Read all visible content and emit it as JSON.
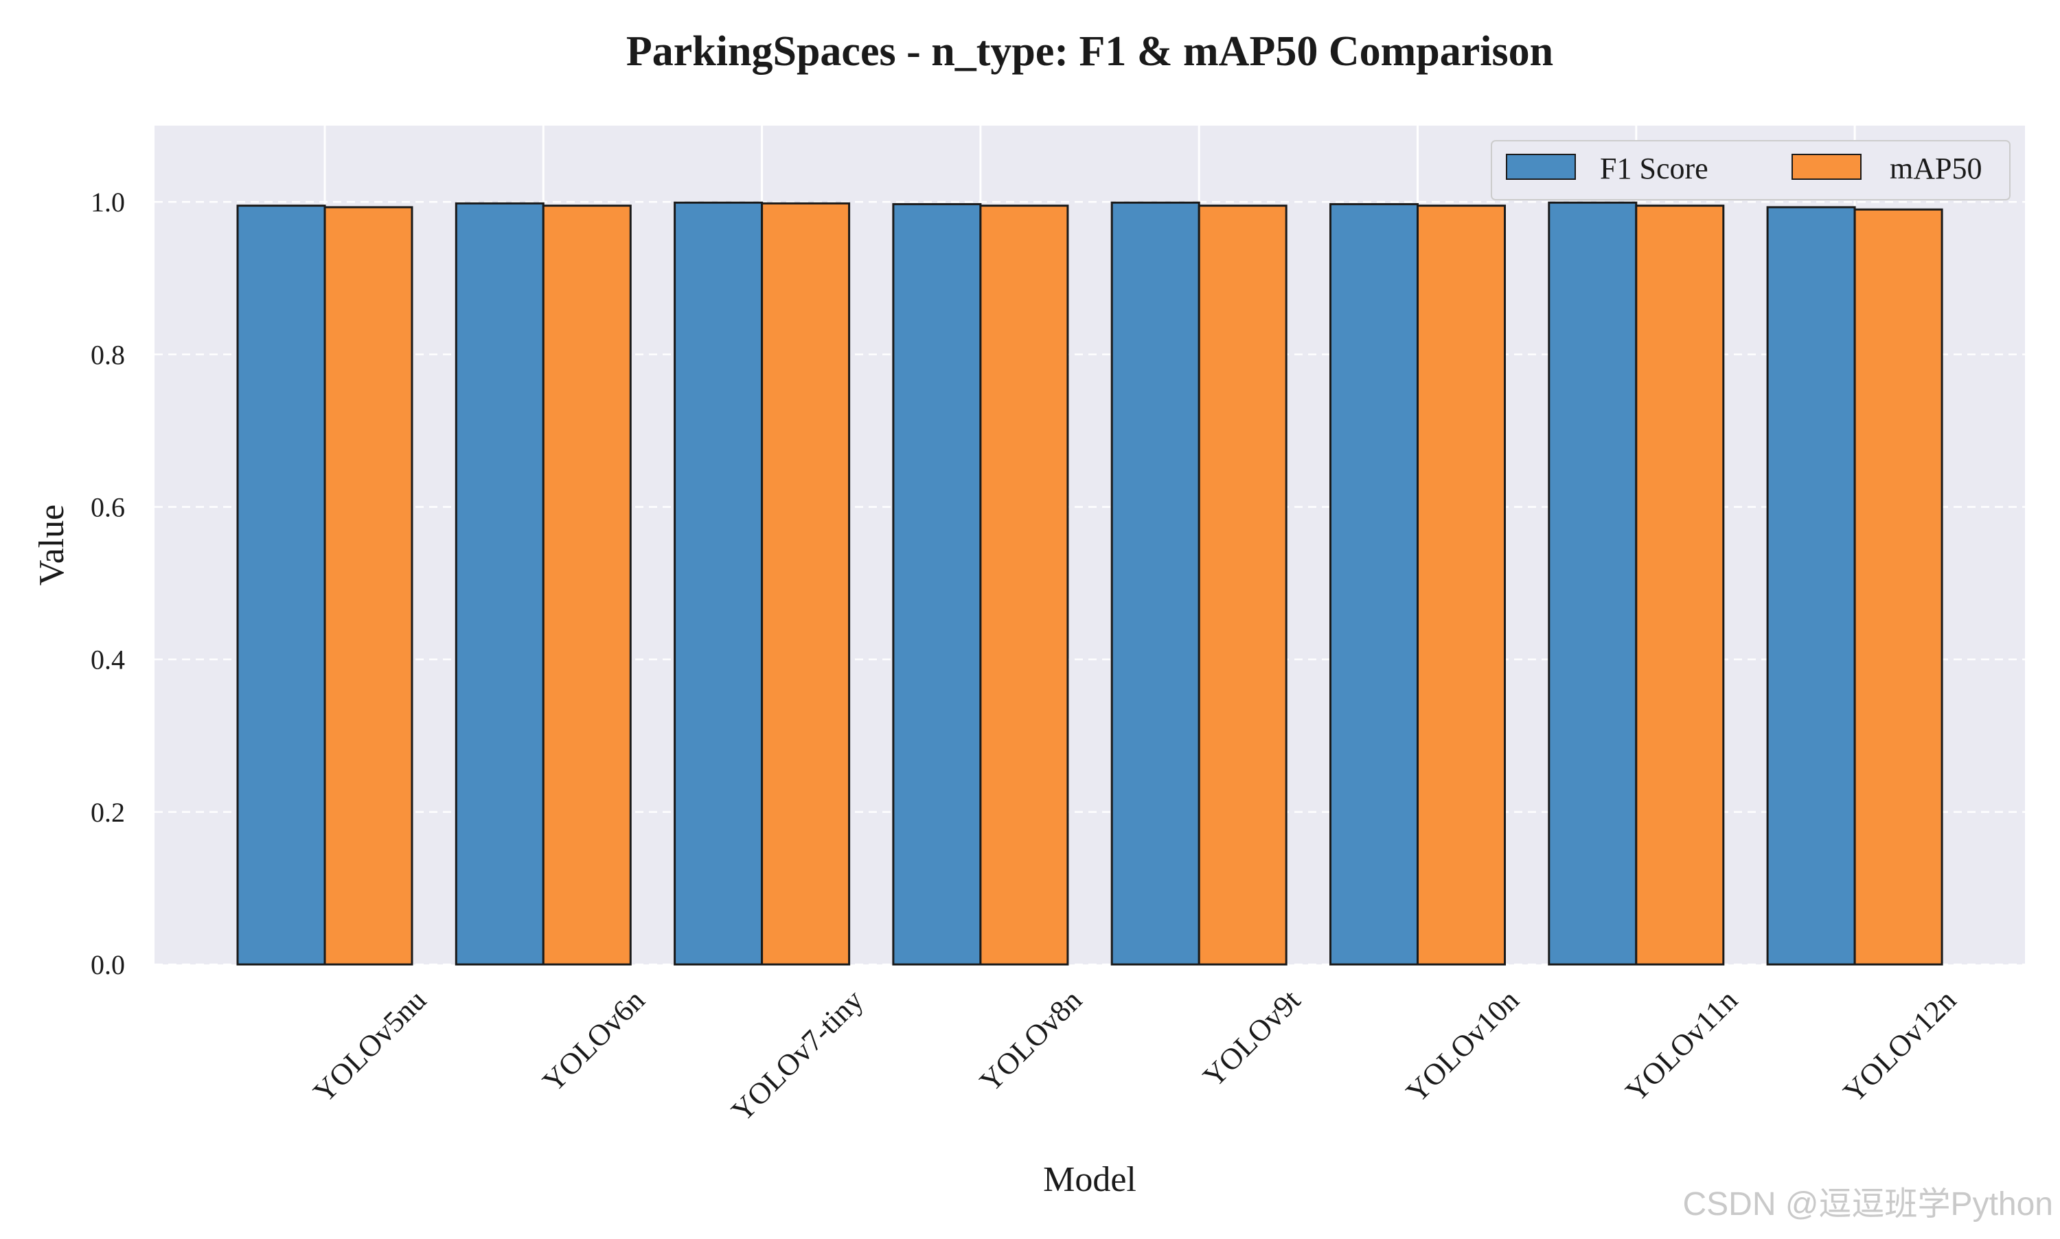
{
  "chart_data": {
    "type": "bar",
    "title": "ParkingSpaces - n_type: F1 & mAP50 Comparison",
    "xlabel": "Model",
    "ylabel": "Value",
    "ylim": [
      0,
      1.1
    ],
    "yticks": [
      0.0,
      0.2,
      0.4,
      0.6,
      0.8,
      1.0
    ],
    "ytick_labels": [
      "0.0",
      "0.2",
      "0.4",
      "0.6",
      "0.8",
      "1.0"
    ],
    "grid": true,
    "legend_position": "top-right",
    "categories": [
      "YOLOv5nu",
      "YOLOv6n",
      "YOLOv7-tiny",
      "YOLOv8n",
      "YOLOv9t",
      "YOLOv10n",
      "YOLOv11n",
      "YOLOv12n"
    ],
    "series": [
      {
        "name": "F1 Score",
        "color": "#4a8cc1",
        "values": [
          0.995,
          0.998,
          0.999,
          0.997,
          0.999,
          0.997,
          0.999,
          0.993
        ]
      },
      {
        "name": "mAP50",
        "color": "#f9923c",
        "values": [
          0.993,
          0.995,
          0.998,
          0.995,
          0.995,
          0.995,
          0.995,
          0.99
        ]
      }
    ]
  },
  "colors": {
    "plot_background": "#eaeaf2",
    "grid": "#ffffff",
    "bar_edge": "#1a1a1a"
  },
  "watermark": "CSDN @逗逗班学Python"
}
